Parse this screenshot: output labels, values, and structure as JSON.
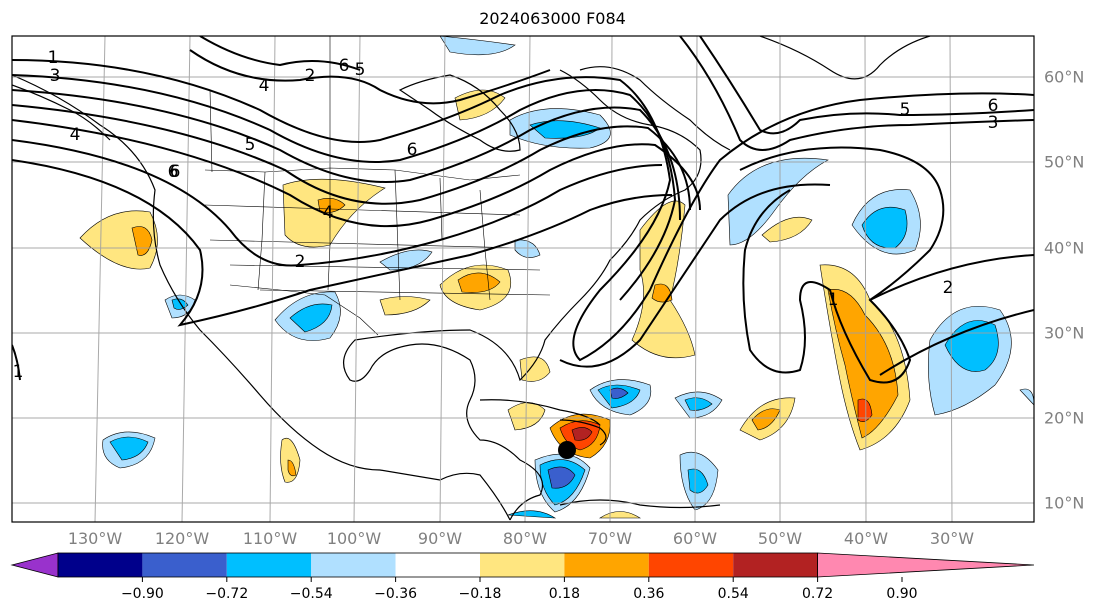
{
  "title": "2024063000 F084",
  "map": {
    "lon_labels": [
      "130°W",
      "120°W",
      "110°W",
      "100°W",
      "90°W",
      "80°W",
      "70°W",
      "60°W",
      "50°W",
      "40°W",
      "30°W"
    ],
    "lat_labels": [
      "60°N",
      "50°N",
      "40°N",
      "30°N",
      "20°N",
      "10°N"
    ],
    "contour_labels": [
      "1",
      "3",
      "4",
      "6",
      "5",
      "2",
      "4",
      "6",
      "5",
      "6",
      "4",
      "6",
      "2",
      "5",
      "6",
      "3",
      "2",
      "1",
      "1"
    ],
    "storm_marker": "black-dot",
    "contour_color": "#000000",
    "grid_color": "#a0a0a0"
  },
  "colorbar": {
    "ticks": [
      "−0.90",
      "−0.72",
      "−0.54",
      "−0.36",
      "−0.18",
      "0.18",
      "0.36",
      "0.54",
      "0.72",
      "0.90"
    ],
    "colors": [
      "#9932cc",
      "#00008b",
      "#3a5fcd",
      "#00bfff",
      "#b0e0ff",
      "#ffffff",
      "#ffe680",
      "#ffa500",
      "#ff4500",
      "#b22222",
      "#ff88b0"
    ]
  }
}
